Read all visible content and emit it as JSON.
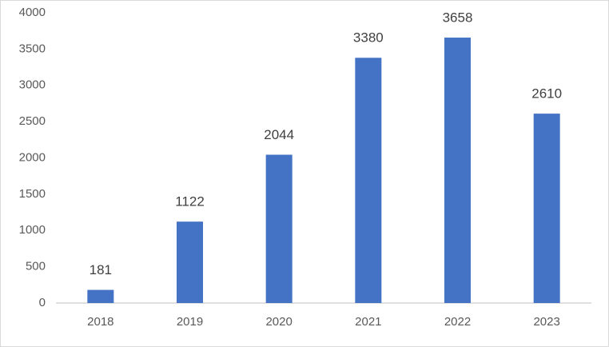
{
  "chart_data": {
    "type": "bar",
    "categories": [
      "2018",
      "2019",
      "2020",
      "2021",
      "2022",
      "2023"
    ],
    "values": [
      181,
      1122,
      2044,
      3380,
      3658,
      2610
    ],
    "color": "#4472c4",
    "ylim": [
      0,
      4000
    ],
    "yticks": [
      0,
      500,
      1000,
      1500,
      2000,
      2500,
      3000,
      3500,
      4000
    ],
    "grid": false,
    "data_labels": true
  }
}
